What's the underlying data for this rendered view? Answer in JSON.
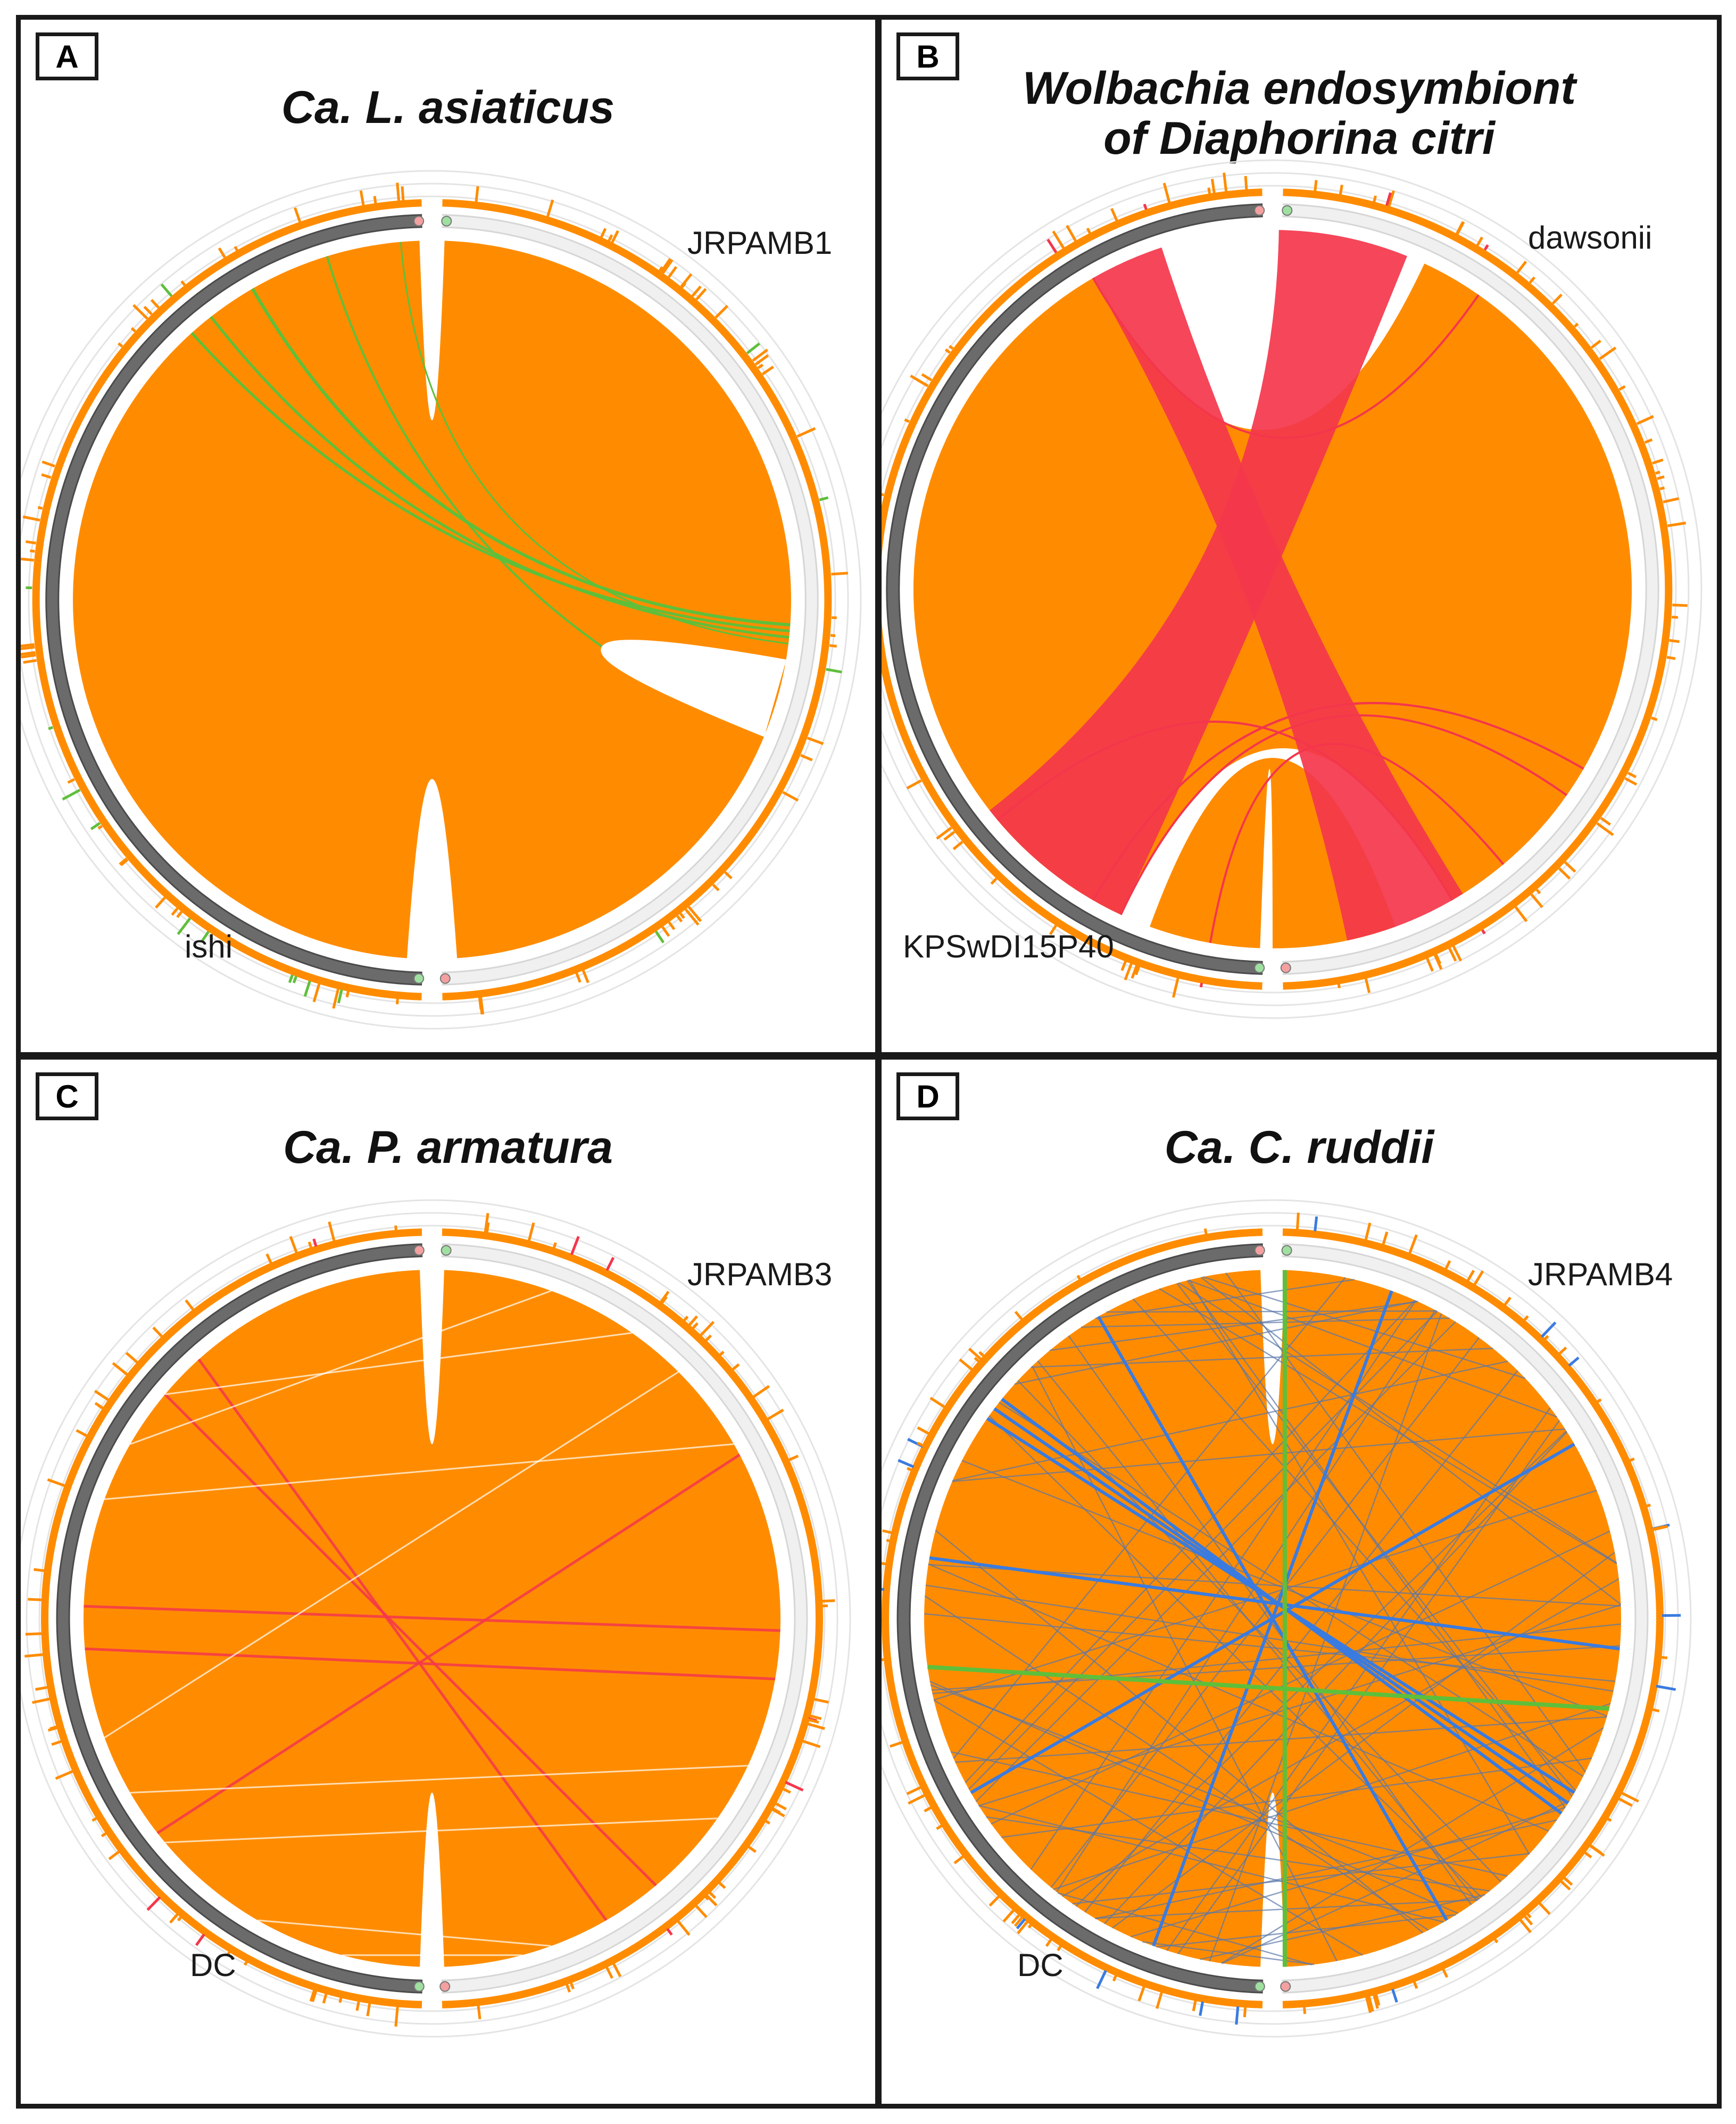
{
  "colors": {
    "link_main": "#ff8c00",
    "link_red": "#f4364c",
    "link_green": "#5fbf3a",
    "link_blue": "#3a7be0",
    "ref_ring": "#6b6b6b",
    "query_ring": "#f0f0f0",
    "frame": "#1a1a1a"
  },
  "panels": [
    {
      "letter": "A",
      "title_lines": [
        "Ca. L. asiaticus"
      ],
      "query_label": "JRPAMB1",
      "ref_label": "ishi",
      "accent": "green",
      "pattern": "collinear_gap"
    },
    {
      "letter": "B",
      "title_lines": [
        "Wolbachia endosymbiont",
        "of Diaphorina citri"
      ],
      "query_label": "dawsonii",
      "ref_label": "KPSwDI15P40",
      "accent": "red",
      "pattern": "inversion"
    },
    {
      "letter": "C",
      "title_lines": [
        "Ca. P. armatura"
      ],
      "query_label": "JRPAMB3",
      "ref_label": "DC",
      "accent": "red",
      "pattern": "collinear_lines"
    },
    {
      "letter": "D",
      "title_lines": [
        "Ca. C. ruddii"
      ],
      "query_label": "JRPAMB4",
      "ref_label": "DC",
      "accent": "blue",
      "pattern": "rearranged"
    }
  ]
}
